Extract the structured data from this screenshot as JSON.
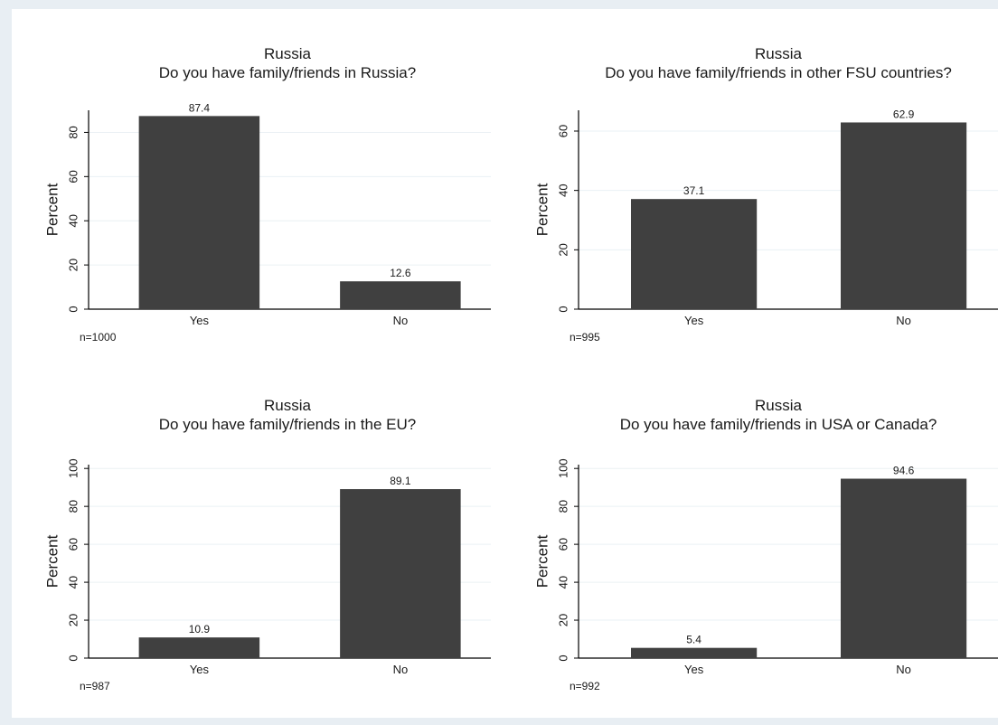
{
  "chart_data": [
    {
      "type": "bar",
      "title": "Russia",
      "subtitle": "Do you have family/friends in Russia?",
      "ylabel": "Percent",
      "categories": [
        "Yes",
        "No"
      ],
      "values": [
        87.4,
        12.6
      ],
      "value_labels": [
        "87.4",
        "12.6"
      ],
      "yticks": [
        "0",
        "20",
        "40",
        "60",
        "80"
      ],
      "ylim": [
        0,
        90
      ],
      "note": "n=1000",
      "bar_color": "#404040"
    },
    {
      "type": "bar",
      "title": "Russia",
      "subtitle": "Do you have family/friends in other FSU countries?",
      "ylabel": "Percent",
      "categories": [
        "Yes",
        "No"
      ],
      "values": [
        37.1,
        62.9
      ],
      "value_labels": [
        "37.1",
        "62.9"
      ],
      "yticks": [
        "0",
        "20",
        "40",
        "60"
      ],
      "ylim": [
        0,
        67
      ],
      "note": "n=995",
      "bar_color": "#404040"
    },
    {
      "type": "bar",
      "title": "Russia",
      "subtitle": "Do you have family/friends in the EU?",
      "ylabel": "Percent",
      "categories": [
        "Yes",
        "No"
      ],
      "values": [
        10.9,
        89.1
      ],
      "value_labels": [
        "10.9",
        "89.1"
      ],
      "yticks": [
        "0",
        "20",
        "40",
        "60",
        "80",
        "100"
      ],
      "ylim": [
        0,
        102
      ],
      "note": "n=987",
      "bar_color": "#404040"
    },
    {
      "type": "bar",
      "title": "Russia",
      "subtitle": "Do you have family/friends in USA or Canada?",
      "ylabel": "Percent",
      "categories": [
        "Yes",
        "No"
      ],
      "values": [
        5.4,
        94.6
      ],
      "value_labels": [
        "5.4",
        "94.6"
      ],
      "yticks": [
        "0",
        "20",
        "40",
        "60",
        "80",
        "100"
      ],
      "ylim": [
        0,
        102
      ],
      "note": "n=992",
      "bar_color": "#404040"
    }
  ]
}
